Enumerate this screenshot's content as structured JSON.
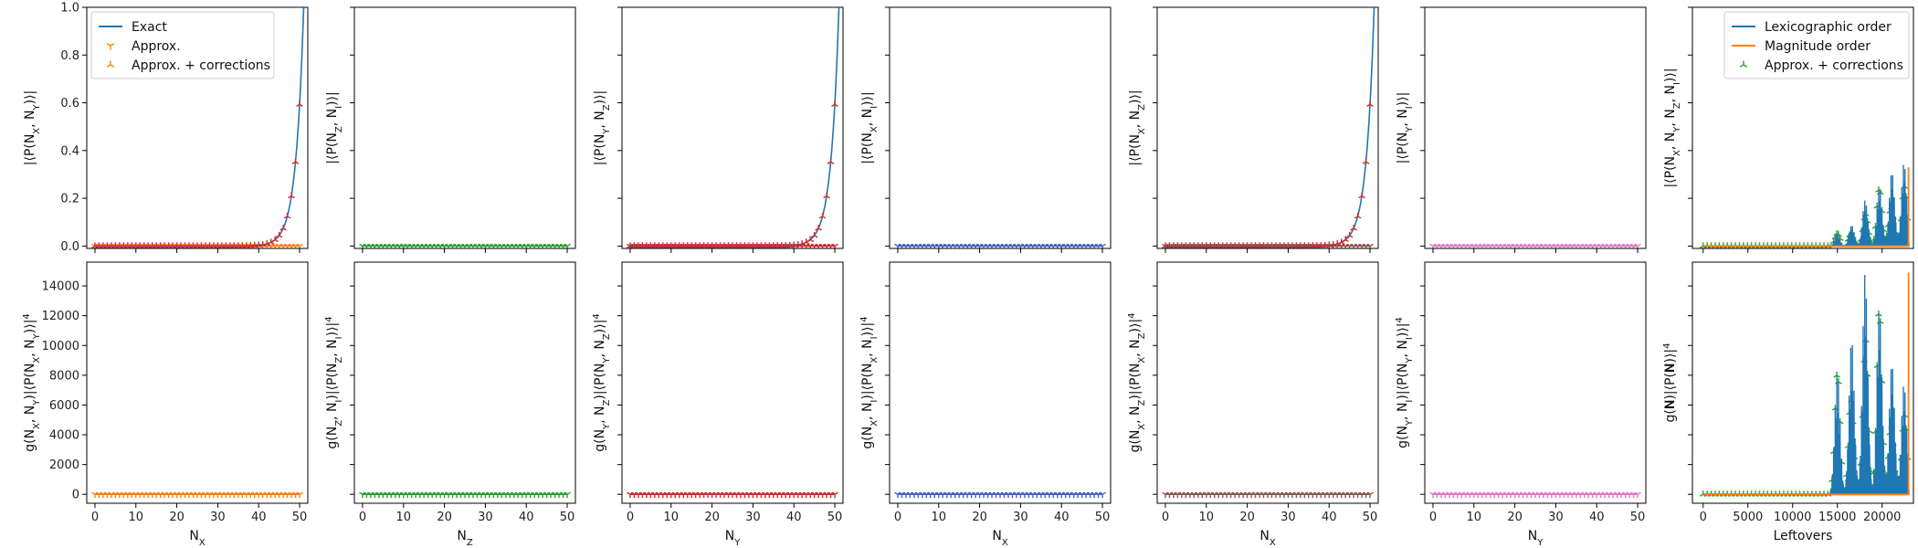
{
  "legend_top_left": [
    {
      "label": "Exact",
      "marker": "line",
      "color": "#1f77b4"
    },
    {
      "label": "Approx.",
      "marker": "tri_down",
      "color": "#ff7f0e"
    },
    {
      "label": "Approx. + corrections",
      "marker": "tri_up",
      "color": "#ff7f0e"
    }
  ],
  "legend_top_right": [
    {
      "label": "Lexicographic order",
      "marker": "line",
      "color": "#1f77b4"
    },
    {
      "label": "Magnitude order",
      "marker": "line",
      "color": "#ff7f0e"
    },
    {
      "label": "Approx. + corrections",
      "marker": "tri_up",
      "color": "#2ca02c"
    }
  ],
  "chart_data": [
    {
      "id": "t1",
      "type": "line",
      "ylabel": "|⟨P(N_X, N_Y)⟩|",
      "xlabel": "",
      "xlim": [
        -2,
        52
      ],
      "ylim": [
        -0.01,
        1.0
      ],
      "yticks": [
        0.0,
        0.2,
        0.4,
        0.6,
        0.8,
        1.0
      ],
      "xticks": [
        0,
        10,
        20,
        30,
        40,
        50
      ],
      "show_xticklabels": false,
      "show_yticklabels": true,
      "curve": "exp",
      "curve_params": {
        "a": 0.593,
        "b": 0.52,
        "x_end": 50,
        "xmin": 0,
        "xmax": 51
      },
      "flat_color": "#ff7f0e",
      "marker_color": "#ff7f0e",
      "curve_color": "#1f77b4",
      "markers_on_curve": true
    },
    {
      "id": "t2",
      "type": "line",
      "ylabel": "|⟨P(N_Z, N_I)⟩|",
      "xlabel": "",
      "xlim": [
        -2,
        52
      ],
      "ylim": [
        -0.01,
        1.0
      ],
      "yticks": [
        0.0,
        0.2,
        0.4,
        0.6,
        0.8,
        1.0
      ],
      "xticks": [
        0,
        10,
        20,
        30,
        40,
        50
      ],
      "show_xticklabels": false,
      "show_yticklabels": false,
      "curve": "flat",
      "curve_params": {
        "xmin": 0,
        "xmax": 50
      },
      "flat_color": "#2ca02c",
      "marker_color": "#2ca02c",
      "curve_color": "#1f77b4",
      "markers_on_curve": false
    },
    {
      "id": "t3",
      "type": "line",
      "ylabel": "|⟨P(N_Y, N_Z)⟩|",
      "xlabel": "",
      "xlim": [
        -2,
        52
      ],
      "ylim": [
        -0.01,
        1.0
      ],
      "yticks": [
        0.0,
        0.2,
        0.4,
        0.6,
        0.8,
        1.0
      ],
      "xticks": [
        0,
        10,
        20,
        30,
        40,
        50
      ],
      "show_xticklabels": false,
      "show_yticklabels": false,
      "curve": "exp",
      "curve_params": {
        "a": 0.593,
        "b": 0.52,
        "x_end": 50,
        "xmin": 0,
        "xmax": 51
      },
      "flat_color": "#d62728",
      "marker_color": "#d62728",
      "curve_color": "#1f77b4",
      "markers_on_curve": true
    },
    {
      "id": "t4",
      "type": "line",
      "ylabel": "|⟨P(N_X, N_I)⟩|",
      "xlabel": "",
      "xlim": [
        -2,
        52
      ],
      "ylim": [
        -0.01,
        1.0
      ],
      "yticks": [
        0.0,
        0.2,
        0.4,
        0.6,
        0.8,
        1.0
      ],
      "xticks": [
        0,
        10,
        20,
        30,
        40,
        50
      ],
      "show_xticklabels": false,
      "show_yticklabels": false,
      "curve": "flat",
      "curve_params": {
        "xmin": 0,
        "xmax": 50
      },
      "flat_color": "#4a5fc1",
      "marker_color": "#4a5fc1",
      "curve_color": "#1f77b4",
      "markers_on_curve": false
    },
    {
      "id": "t5",
      "type": "line",
      "ylabel": "|⟨P(N_X, N_Z)⟩|",
      "xlabel": "",
      "xlim": [
        -2,
        52
      ],
      "ylim": [
        -0.01,
        1.0
      ],
      "yticks": [
        0.0,
        0.2,
        0.4,
        0.6,
        0.8,
        1.0
      ],
      "xticks": [
        0,
        10,
        20,
        30,
        40,
        50
      ],
      "show_xticklabels": false,
      "show_yticklabels": false,
      "curve": "exp",
      "curve_params": {
        "a": 0.593,
        "b": 0.52,
        "x_end": 50,
        "xmin": 0,
        "xmax": 51
      },
      "flat_color": "#8c564b",
      "marker_color": "#8c564b",
      "curve_color": "#1f77b4",
      "markers_on_curve": true
    },
    {
      "id": "t6",
      "type": "line",
      "ylabel": "|⟨P(N_Y, N_I)⟩|",
      "xlabel": "",
      "xlim": [
        -2,
        52
      ],
      "ylim": [
        -0.01,
        1.0
      ],
      "yticks": [
        0.0,
        0.2,
        0.4,
        0.6,
        0.8,
        1.0
      ],
      "xticks": [
        0,
        10,
        20,
        30,
        40,
        50
      ],
      "show_xticklabels": false,
      "show_yticklabels": false,
      "curve": "flat",
      "curve_params": {
        "xmin": 0,
        "xmax": 50
      },
      "flat_color": "#e377c2",
      "marker_color": "#e377c2",
      "curve_color": "#1f77b4",
      "markers_on_curve": false
    },
    {
      "id": "t7",
      "type": "line",
      "ylabel": "|⟨P(N_X, N_Y, N_Z, N_I)⟩|",
      "xlabel": "",
      "xlim": [
        -1200,
        23500
      ],
      "ylim": [
        -0.01,
        1.0
      ],
      "yticks": [
        0.0,
        0.2,
        0.4,
        0.6,
        0.8,
        1.0
      ],
      "xticks": [
        0,
        5000,
        10000,
        15000,
        20000
      ],
      "show_xticklabels": false,
      "show_yticklabels": false,
      "curve": "lexi_spikes",
      "curve_params": {
        "xmax": 23000,
        "peak": 0.35,
        "jump_x": 22950,
        "jump_y": 0.33
      },
      "flat_color": "#2ca02c",
      "marker_color": "#2ca02c",
      "curve_color": "#1f77b4",
      "mag_color": "#ff7f0e",
      "markers_on_curve": true
    },
    {
      "id": "b1",
      "type": "line",
      "ylabel": "g(N_X, N_Y)|⟨P(N_X, N_Y)⟩|^4",
      "xlabel": "N_X",
      "xlim": [
        -2,
        52
      ],
      "ylim": [
        -600,
        15600
      ],
      "yticks": [
        0,
        2000,
        4000,
        6000,
        8000,
        10000,
        12000,
        14000
      ],
      "xticks": [
        0,
        10,
        20,
        30,
        40,
        50
      ],
      "show_xticklabels": true,
      "show_yticklabels": true,
      "curve": "flat",
      "curve_params": {
        "xmin": 0,
        "xmax": 50
      },
      "flat_color": "#ff7f0e",
      "marker_color": "#ff7f0e",
      "curve_color": "#1f77b4",
      "markers_on_curve": false
    },
    {
      "id": "b2",
      "type": "line",
      "ylabel": "g(N_Z, N_I)|⟨P(N_Z, N_I)⟩|^4",
      "xlabel": "N_Z",
      "xlim": [
        -2,
        52
      ],
      "ylim": [
        -600,
        15600
      ],
      "yticks": [
        0,
        2000,
        4000,
        6000,
        8000,
        10000,
        12000,
        14000
      ],
      "xticks": [
        0,
        10,
        20,
        30,
        40,
        50
      ],
      "show_xticklabels": true,
      "show_yticklabels": false,
      "curve": "flat",
      "curve_params": {
        "xmin": 0,
        "xmax": 50
      },
      "flat_color": "#2ca02c",
      "marker_color": "#2ca02c",
      "curve_color": "#1f77b4",
      "markers_on_curve": false
    },
    {
      "id": "b3",
      "type": "line",
      "ylabel": "g(N_Y, N_Z)|⟨P(N_Y, N_Z)⟩|^4",
      "xlabel": "N_Y",
      "xlim": [
        -2,
        52
      ],
      "ylim": [
        -600,
        15600
      ],
      "yticks": [
        0,
        2000,
        4000,
        6000,
        8000,
        10000,
        12000,
        14000
      ],
      "xticks": [
        0,
        10,
        20,
        30,
        40,
        50
      ],
      "show_xticklabels": true,
      "show_yticklabels": false,
      "curve": "flat",
      "curve_params": {
        "xmin": 0,
        "xmax": 50
      },
      "flat_color": "#d62728",
      "marker_color": "#d62728",
      "curve_color": "#1f77b4",
      "markers_on_curve": false
    },
    {
      "id": "b4",
      "type": "line",
      "ylabel": "g(N_X, N_I)|⟨P(N_X, N_I)⟩|^4",
      "xlabel": "N_X",
      "xlim": [
        -2,
        52
      ],
      "ylim": [
        -600,
        15600
      ],
      "yticks": [
        0,
        2000,
        4000,
        6000,
        8000,
        10000,
        12000,
        14000
      ],
      "xticks": [
        0,
        10,
        20,
        30,
        40,
        50
      ],
      "show_xticklabels": true,
      "show_yticklabels": false,
      "curve": "flat",
      "curve_params": {
        "xmin": 0,
        "xmax": 50
      },
      "flat_color": "#4a5fc1",
      "marker_color": "#4a5fc1",
      "curve_color": "#1f77b4",
      "markers_on_curve": false
    },
    {
      "id": "b5",
      "type": "line",
      "ylabel": "g(N_X, N_Z)|⟨P(N_X, N_Z)⟩|^4",
      "xlabel": "N_X",
      "xlim": [
        -2,
        52
      ],
      "ylim": [
        -600,
        15600
      ],
      "yticks": [
        0,
        2000,
        4000,
        6000,
        8000,
        10000,
        12000,
        14000
      ],
      "xticks": [
        0,
        10,
        20,
        30,
        40,
        50
      ],
      "show_xticklabels": true,
      "show_yticklabels": false,
      "curve": "flat",
      "curve_params": {
        "xmin": 0,
        "xmax": 50
      },
      "flat_color": "#8c564b",
      "marker_color": "#8c564b",
      "curve_color": "#1f77b4",
      "markers_on_curve": false
    },
    {
      "id": "b6",
      "type": "line",
      "ylabel": "g(N_Y, N_I)|⟨P(N_Y, N_I)⟩|^4",
      "xlabel": "N_Y",
      "xlim": [
        -2,
        52
      ],
      "ylim": [
        -600,
        15600
      ],
      "yticks": [
        0,
        2000,
        4000,
        6000,
        8000,
        10000,
        12000,
        14000
      ],
      "xticks": [
        0,
        10,
        20,
        30,
        40,
        50
      ],
      "show_xticklabels": true,
      "show_yticklabels": false,
      "curve": "flat",
      "curve_params": {
        "xmin": 0,
        "xmax": 50
      },
      "flat_color": "#e377c2",
      "marker_color": "#e377c2",
      "curve_color": "#1f77b4",
      "markers_on_curve": false
    },
    {
      "id": "b7",
      "type": "line",
      "ylabel": "g(𝐍)|⟨P(𝐍)⟩|^4",
      "xlabel": "Leftovers",
      "xlim": [
        -1200,
        23500
      ],
      "ylim": [
        -600,
        15600
      ],
      "yticks": [
        0,
        2000,
        4000,
        6000,
        8000,
        10000,
        12000,
        14000
      ],
      "xticks": [
        0,
        5000,
        10000,
        15000,
        20000
      ],
      "show_xticklabels": true,
      "show_yticklabels": false,
      "curve": "lexi_spikes",
      "curve_params": {
        "xmax": 23000,
        "peak": 14900,
        "jump_x": 22950,
        "jump_y": 14900
      },
      "flat_color": "#2ca02c",
      "marker_color": "#2ca02c",
      "curve_color": "#1f77b4",
      "mag_color": "#ff7f0e",
      "markers_on_curve": true
    }
  ]
}
